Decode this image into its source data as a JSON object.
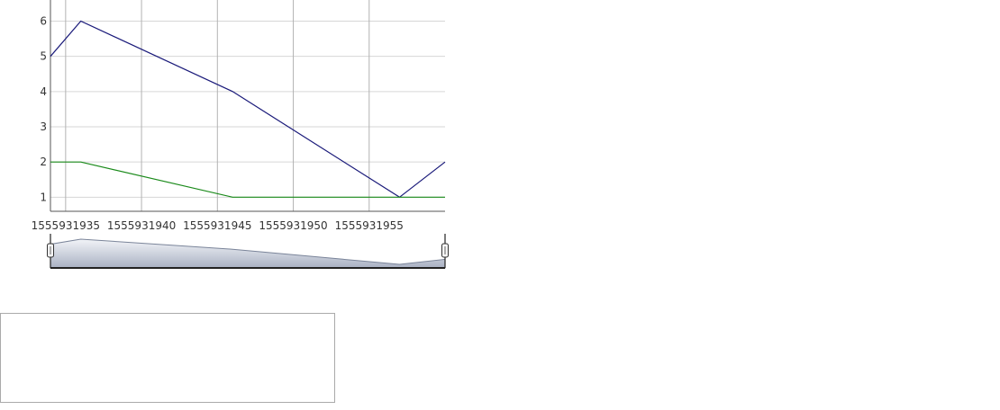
{
  "chart_data": {
    "type": "line",
    "title": "",
    "xlabel": "",
    "ylabel": "",
    "x": [
      1555931934,
      1555931936,
      1555931946,
      1555931957,
      1555931960
    ],
    "x_ticks": [
      1555931935,
      1555931940,
      1555931945,
      1555931950,
      1555931955
    ],
    "y_ticks": [
      1,
      2,
      3,
      4,
      5,
      6
    ],
    "xlim": [
      1555931934,
      1555931960
    ],
    "ylim": [
      0.6,
      6.6
    ],
    "grid": true,
    "series": [
      {
        "values": [
          5,
          6,
          4,
          1,
          2
        ],
        "color": "#1a1a7a"
      },
      {
        "values": [
          2,
          2,
          1,
          1,
          1
        ],
        "color": "#1a8a1a"
      }
    ],
    "range_selector": {
      "visible": true,
      "start": 1555931934,
      "end": 1555931960,
      "fill_color": "#a9b1c3",
      "line_color": "#7a8499"
    }
  },
  "legend": {
    "text": ""
  }
}
